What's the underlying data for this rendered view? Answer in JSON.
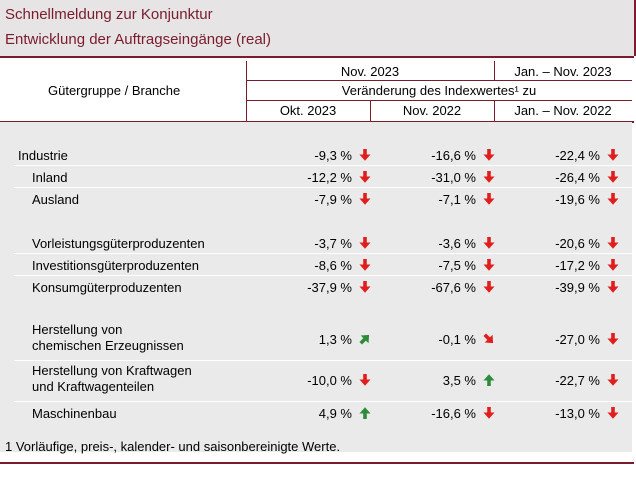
{
  "header": {
    "title": "Schnellmeldung zur Konjunktur",
    "subtitle": "Entwicklung der Auftragseingänge (real)"
  },
  "table": {
    "col_label": "Gütergruppe / Branche",
    "period1": "Nov. 2023",
    "period2": "Jan. – Nov. 2023",
    "change_label": "Veränderung des Indexwertes¹ zu",
    "sub_cols": [
      "Okt. 2023",
      "Nov. 2022",
      "Jan. – Nov. 2022"
    ]
  },
  "rows": [
    {
      "label": "Industrie",
      "values": [
        "-9,3 %",
        "-16,6 %",
        "-22,4 %"
      ],
      "arrows": [
        "down",
        "down",
        "down"
      ]
    },
    {
      "label": "Inland",
      "values": [
        "-12,2 %",
        "-31,0 %",
        "-26,4 %"
      ],
      "arrows": [
        "down",
        "down",
        "down"
      ]
    },
    {
      "label": "Ausland",
      "values": [
        "-7,9 %",
        "-7,1 %",
        "-19,6 %"
      ],
      "arrows": [
        "down",
        "down",
        "down"
      ]
    },
    {
      "label": "Vorleistungsgüterproduzenten",
      "values": [
        "-3,7 %",
        "-3,6 %",
        "-20,6 %"
      ],
      "arrows": [
        "down",
        "down",
        "down"
      ]
    },
    {
      "label": "Investitionsgüterproduzenten",
      "values": [
        "-8,6 %",
        "-7,5 %",
        "-17,2 %"
      ],
      "arrows": [
        "down",
        "down",
        "down"
      ]
    },
    {
      "label": "Konsumgüterproduzenten",
      "values": [
        "-37,9 %",
        "-67,6 %",
        "-39,9 %"
      ],
      "arrows": [
        "down",
        "down",
        "down"
      ]
    },
    {
      "label_line1": "Herstellung von",
      "label_line2": "chemischen Erzeugnissen",
      "values": [
        "1,3 %",
        "-0,1 %",
        "-27,0 %"
      ],
      "arrows": [
        "up-right",
        "down-right",
        "down"
      ]
    },
    {
      "label_line1": "Herstellung von Kraftwagen",
      "label_line2": "und Kraftwagenteilen",
      "values": [
        "-10,0 %",
        "3,5 %",
        "-22,7 %"
      ],
      "arrows": [
        "down",
        "up",
        "down"
      ]
    },
    {
      "label": "Maschinenbau",
      "values": [
        "4,9 %",
        "-16,6 %",
        "-13,0 %"
      ],
      "arrows": [
        "up",
        "down",
        "down"
      ]
    }
  ],
  "footnote": "1 Vorläufige, preis-, kalender- und saisonbereinigte Werte.",
  "colors": {
    "accent": "#7a1c2e",
    "arrow_down": "#e01e1e",
    "arrow_up": "#2e8b3a",
    "background_band": "#e6e4e4"
  }
}
